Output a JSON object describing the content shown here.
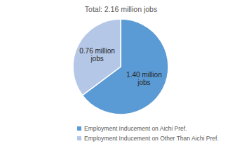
{
  "chart_data": {
    "type": "pie",
    "title": "Total: 2.16 million jobs",
    "categories": [
      "Employment Inducement on Aichi Pref.",
      "Employment Inducement on Other Than Aichi Pref."
    ],
    "values": [
      1.4,
      0.76
    ],
    "value_labels": [
      "1.40 million jobs",
      "0.76 million jobs"
    ],
    "colors": [
      "#5b9bd5",
      "#b4c7e7"
    ],
    "data_labels": true,
    "legend": "bottom"
  }
}
